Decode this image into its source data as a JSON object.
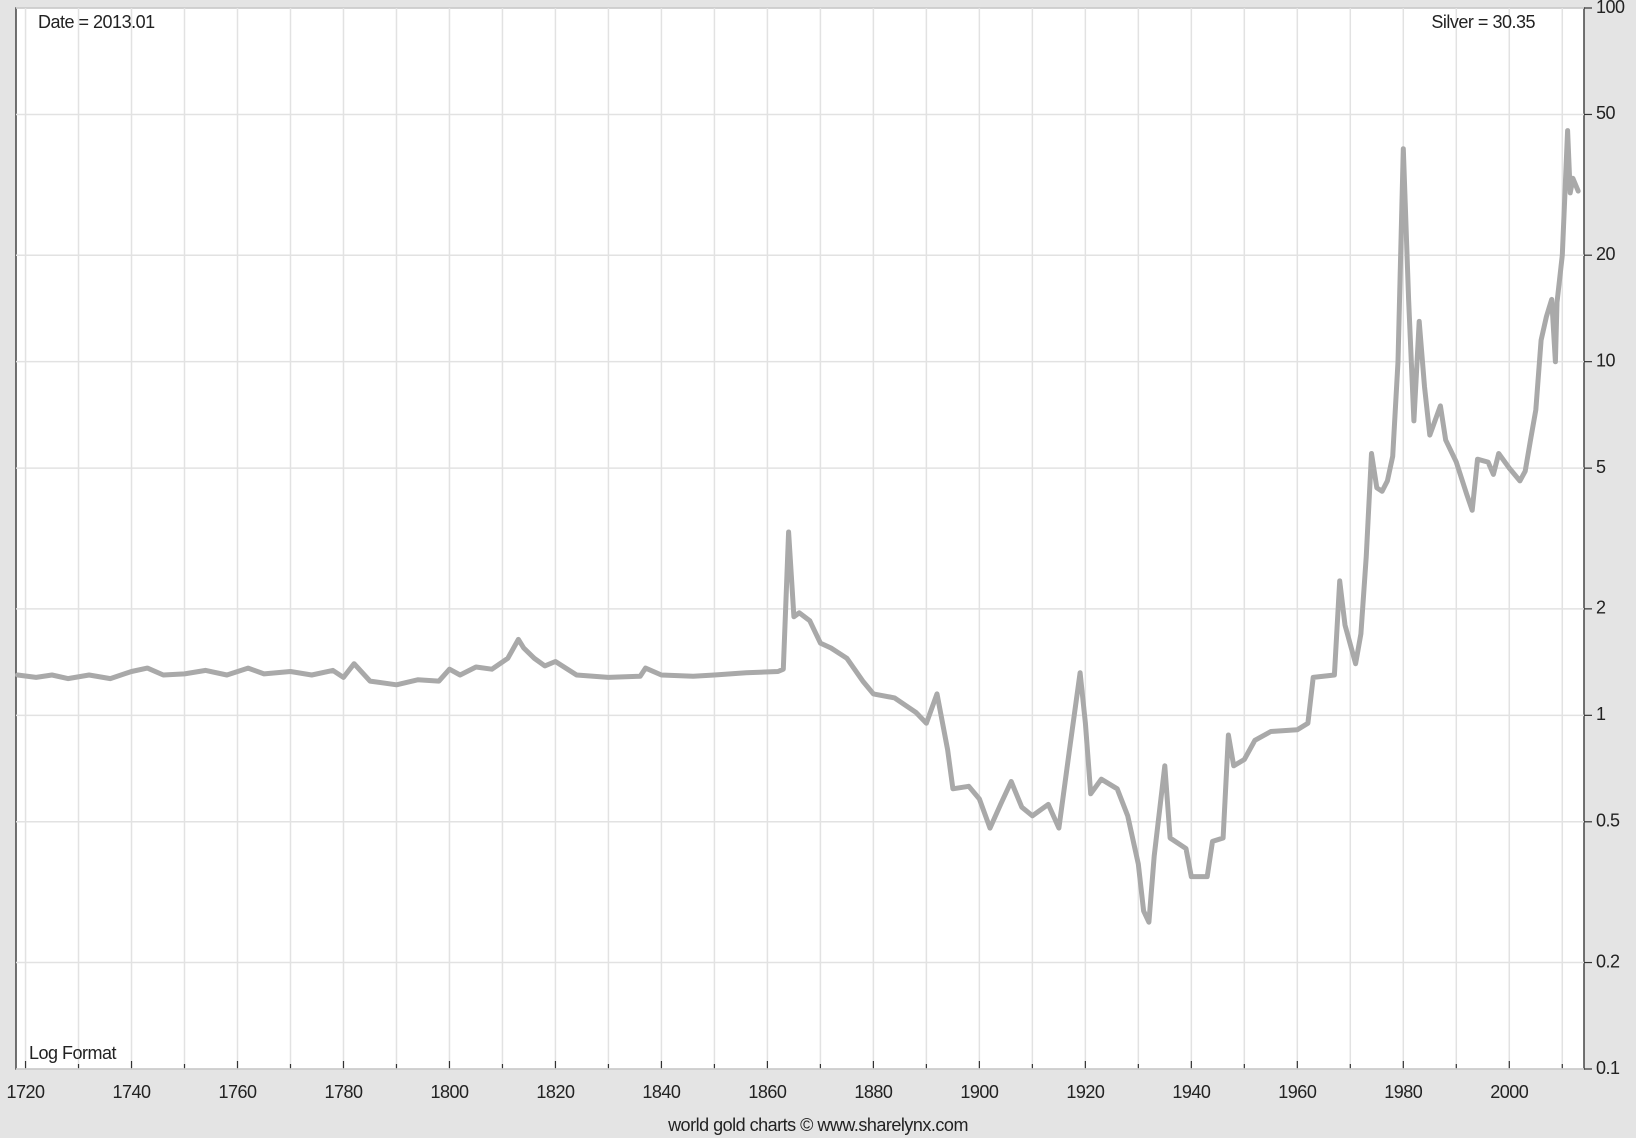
{
  "chart_data": {
    "type": "line",
    "date_label": "Date = 2013.01",
    "value_label": "Silver = 30.35",
    "scale_note": "Log Format",
    "footer": "world gold charts © www.sharelynx.com",
    "color": "#a9a9a9",
    "log_y": true,
    "grid": true,
    "xlim": [
      1718.2,
      2014.1
    ],
    "ylim": [
      0.1,
      100
    ],
    "xticks": [
      1720,
      1740,
      1760,
      1780,
      1800,
      1820,
      1840,
      1860,
      1880,
      1900,
      1920,
      1940,
      1960,
      1980,
      2000
    ],
    "x_minor_ticks": [
      1730,
      1750,
      1770,
      1790,
      1810,
      1830,
      1850,
      1870,
      1890,
      1910,
      1930,
      1950,
      1970,
      1990,
      2010
    ],
    "yticks": [
      0.1,
      0.2,
      0.5,
      1,
      2,
      5,
      10,
      20,
      50,
      100
    ],
    "x": [
      1718.5,
      1722,
      1725,
      1728,
      1732,
      1736,
      1740,
      1743,
      1746,
      1750,
      1754,
      1758,
      1762,
      1765,
      1770,
      1774,
      1778,
      1780,
      1782,
      1785,
      1790,
      1794,
      1798,
      1800,
      1802,
      1805,
      1808,
      1811,
      1813,
      1814,
      1816,
      1818,
      1820,
      1824,
      1830,
      1836,
      1837,
      1840,
      1846,
      1850,
      1856,
      1862,
      1863,
      1864,
      1865,
      1866,
      1868,
      1870,
      1872,
      1875,
      1878,
      1880,
      1884,
      1888,
      1890,
      1892,
      1894,
      1895,
      1898,
      1900,
      1902,
      1904,
      1906,
      1908,
      1910,
      1913,
      1915,
      1917,
      1919,
      1920,
      1921,
      1923,
      1926,
      1928,
      1930,
      1931,
      1932,
      1933,
      1935,
      1936,
      1939,
      1940,
      1943,
      1944,
      1946,
      1947,
      1948,
      1950,
      1952,
      1955,
      1960,
      1962,
      1963,
      1967,
      1968,
      1969,
      1971,
      1972,
      1973,
      1974,
      1975,
      1976,
      1977,
      1978,
      1979,
      1980,
      1981,
      1982,
      1983,
      1984,
      1985,
      1987,
      1988,
      1990,
      1992,
      1993,
      1994,
      1996,
      1997,
      1998,
      2000,
      2002,
      2003,
      2004,
      2005,
      2006,
      2007,
      2008,
      2008.7,
      2009,
      2010,
      2011,
      2011.5,
      2012,
      2013
    ],
    "values": [
      1.3,
      1.28,
      1.3,
      1.27,
      1.3,
      1.27,
      1.33,
      1.36,
      1.3,
      1.31,
      1.34,
      1.3,
      1.36,
      1.31,
      1.33,
      1.3,
      1.34,
      1.28,
      1.4,
      1.25,
      1.22,
      1.26,
      1.25,
      1.35,
      1.3,
      1.37,
      1.35,
      1.45,
      1.64,
      1.55,
      1.45,
      1.38,
      1.42,
      1.3,
      1.28,
      1.29,
      1.36,
      1.3,
      1.29,
      1.3,
      1.32,
      1.33,
      1.35,
      3.3,
      1.9,
      1.95,
      1.85,
      1.6,
      1.55,
      1.45,
      1.25,
      1.15,
      1.12,
      1.02,
      0.95,
      1.15,
      0.8,
      0.62,
      0.63,
      0.58,
      0.48,
      0.56,
      0.65,
      0.55,
      0.52,
      0.56,
      0.48,
      0.8,
      1.32,
      0.95,
      0.6,
      0.66,
      0.62,
      0.52,
      0.38,
      0.28,
      0.26,
      0.4,
      0.72,
      0.45,
      0.42,
      0.35,
      0.35,
      0.44,
      0.45,
      0.88,
      0.72,
      0.75,
      0.85,
      0.9,
      0.91,
      0.95,
      1.28,
      1.3,
      2.4,
      1.8,
      1.4,
      1.7,
      2.8,
      5.5,
      4.4,
      4.3,
      4.6,
      5.4,
      10,
      40,
      15,
      6.8,
      13,
      8.5,
      6.2,
      7.5,
      6.0,
      5.2,
      4.2,
      3.8,
      5.3,
      5.2,
      4.8,
      5.5,
      5.0,
      4.6,
      4.9,
      6.0,
      7.3,
      11.5,
      13.4,
      15,
      10,
      14.7,
      20,
      45,
      30,
      33,
      30.35
    ]
  }
}
